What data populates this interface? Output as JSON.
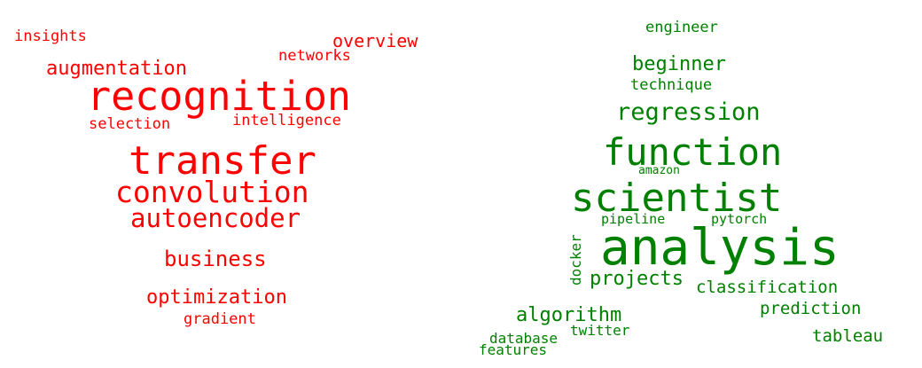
{
  "clouds": [
    {
      "name": "left",
      "color": "#ff0000",
      "words": [
        "insights",
        "overview",
        "networks",
        "augmentation",
        "recognition",
        "selection",
        "intelligence",
        "transfer",
        "convolution",
        "autoencoder",
        "business",
        "optimization",
        "gradient"
      ]
    },
    {
      "name": "right",
      "color": "#008000",
      "words": [
        "engineer",
        "beginner",
        "technique",
        "regression",
        "function",
        "amazon",
        "scientist",
        "pipeline",
        "pytorch",
        "analysis",
        "docker",
        "projects",
        "classification",
        "algorithm",
        "prediction",
        "twitter",
        "database",
        "tableau",
        "features"
      ]
    }
  ]
}
